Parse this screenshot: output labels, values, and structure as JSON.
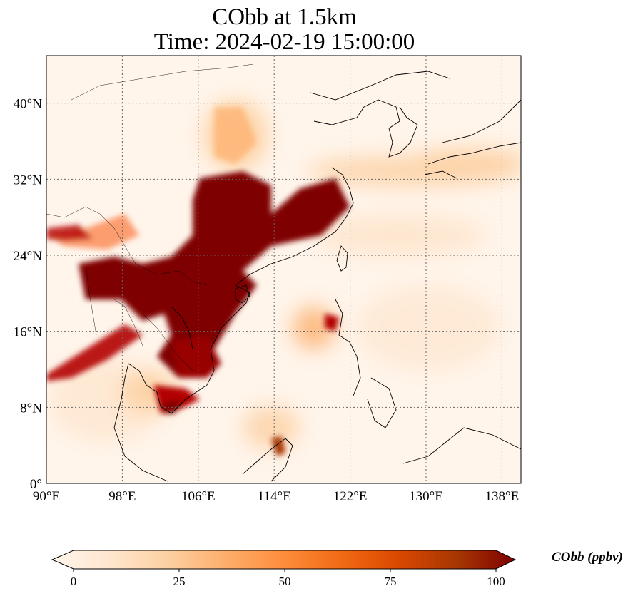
{
  "figure": {
    "title_line_1": "CObb at 1.5km",
    "title_line_2": "Time: 2024-02-19 15:00:00"
  },
  "map": {
    "lon_range": [
      90,
      140
    ],
    "lat_range": [
      0,
      45
    ],
    "lon_ticks": [
      {
        "value": 90,
        "label": "90°E"
      },
      {
        "value": 98,
        "label": "98°E"
      },
      {
        "value": 106,
        "label": "106°E"
      },
      {
        "value": 114,
        "label": "114°E"
      },
      {
        "value": 122,
        "label": "122°E"
      },
      {
        "value": 130,
        "label": "130°E"
      },
      {
        "value": 138,
        "label": "138°E"
      }
    ],
    "lat_ticks": [
      {
        "value": 0,
        "label": "0°"
      },
      {
        "value": 8,
        "label": "8°N"
      },
      {
        "value": 16,
        "label": "16°N"
      },
      {
        "value": 24,
        "label": "24°N"
      },
      {
        "value": 32,
        "label": "32°N"
      },
      {
        "value": 40,
        "label": "40°N"
      }
    ],
    "gridlines": true,
    "plumes": [
      {
        "lon": 108,
        "lat": 27,
        "value": 100
      },
      {
        "lon": 106,
        "lat": 22,
        "value": 100
      },
      {
        "lon": 99,
        "lat": 21,
        "value": 100
      },
      {
        "lon": 104,
        "lat": 18,
        "value": 100
      },
      {
        "lon": 111,
        "lat": 26,
        "value": 100
      },
      {
        "lon": 106,
        "lat": 13,
        "value": 100
      },
      {
        "lon": 112,
        "lat": 20,
        "value": 100
      },
      {
        "lon": 114,
        "lat": 28,
        "value": 100
      },
      {
        "lon": 93,
        "lat": 12,
        "value": 95
      },
      {
        "lon": 104,
        "lat": 8,
        "value": 90
      },
      {
        "lon": 93,
        "lat": 26,
        "value": 80
      },
      {
        "lon": 120,
        "lat": 17,
        "value": 85
      },
      {
        "lon": 114,
        "lat": 4,
        "value": 85
      },
      {
        "lon": 107,
        "lat": 36,
        "value": 30
      },
      {
        "lon": 127,
        "lat": 32,
        "value": 20
      },
      {
        "lon": 117,
        "lat": 16,
        "value": 40
      }
    ]
  },
  "colorbar": {
    "label": "CObb (ppbv)",
    "vmin": 0,
    "vmax": 100,
    "ticks": [
      {
        "value": 0,
        "label": "0"
      },
      {
        "value": 25,
        "label": "25"
      },
      {
        "value": 50,
        "label": "50"
      },
      {
        "value": 75,
        "label": "75"
      },
      {
        "value": 100,
        "label": "100"
      }
    ],
    "colors": [
      "#fff5eb",
      "#fee6ce",
      "#fdd0a2",
      "#fdae6b",
      "#fd8d3c",
      "#f16913",
      "#d94801",
      "#a63603",
      "#7f0000"
    ]
  }
}
